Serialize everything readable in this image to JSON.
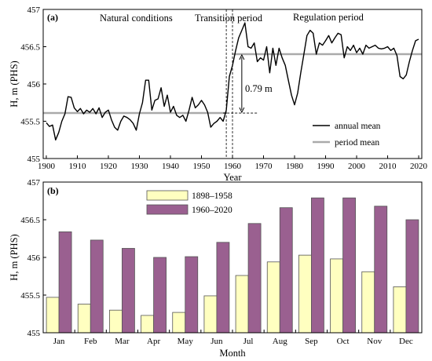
{
  "chart_data": [
    {
      "panel_label": "(a)",
      "type": "line",
      "xlabel": "Year",
      "ylabel": "H, m (PHS)",
      "xlim": [
        1899,
        2021
      ],
      "ylim": [
        455,
        457
      ],
      "x_ticks": [
        1900,
        1910,
        1920,
        1930,
        1940,
        1950,
        1960,
        1970,
        1980,
        1990,
        2000,
        2010,
        2020
      ],
      "y_ticks": [
        455,
        455.5,
        456,
        456.5,
        457
      ],
      "legend": {
        "position": "bottom-right",
        "entries": [
          "annual mean",
          "period mean"
        ]
      },
      "annotations": [
        "Natural conditions",
        "Transition period",
        "Regulation period",
        "0.79 m"
      ],
      "transition_lines_x": [
        1958,
        1960
      ],
      "series": [
        {
          "name": "annual mean",
          "color": "#000000",
          "x": [
            1900,
            1901,
            1902,
            1903,
            1904,
            1905,
            1906,
            1907,
            1908,
            1909,
            1910,
            1911,
            1912,
            1913,
            1914,
            1915,
            1916,
            1917,
            1918,
            1919,
            1920,
            1921,
            1922,
            1923,
            1924,
            1925,
            1926,
            1927,
            1928,
            1929,
            1930,
            1931,
            1932,
            1933,
            1934,
            1935,
            1936,
            1937,
            1938,
            1939,
            1940,
            1941,
            1942,
            1943,
            1944,
            1945,
            1946,
            1947,
            1948,
            1949,
            1950,
            1951,
            1952,
            1953,
            1954,
            1955,
            1956,
            1957,
            1958,
            1959,
            1960,
            1961,
            1962,
            1963,
            1964,
            1965,
            1966,
            1967,
            1968,
            1969,
            1970,
            1971,
            1972,
            1973,
            1974,
            1975,
            1976,
            1977,
            1978,
            1979,
            1980,
            1981,
            1982,
            1983,
            1984,
            1985,
            1986,
            1987,
            1988,
            1989,
            1990,
            1991,
            1992,
            1993,
            1994,
            1995,
            1996,
            1997,
            1998,
            1999,
            2000,
            2001,
            2002,
            2003,
            2004,
            2005,
            2006,
            2007,
            2008,
            2009,
            2010,
            2011,
            2012,
            2013,
            2014,
            2015,
            2016,
            2017,
            2018,
            2019,
            2020
          ],
          "y": [
            455.48,
            455.43,
            455.45,
            455.25,
            455.35,
            455.5,
            455.6,
            455.83,
            455.82,
            455.68,
            455.63,
            455.67,
            455.6,
            455.65,
            455.62,
            455.67,
            455.6,
            455.68,
            455.55,
            455.62,
            455.65,
            455.52,
            455.42,
            455.38,
            455.5,
            455.57,
            455.55,
            455.52,
            455.47,
            455.38,
            455.6,
            455.75,
            456.05,
            456.05,
            455.65,
            455.78,
            455.8,
            455.95,
            455.7,
            455.85,
            455.62,
            455.7,
            455.58,
            455.55,
            455.58,
            455.5,
            455.65,
            455.82,
            455.68,
            455.72,
            455.78,
            455.72,
            455.62,
            455.42,
            455.47,
            455.5,
            455.55,
            455.5,
            455.65,
            456.1,
            456.25,
            456.45,
            456.62,
            456.72,
            456.82,
            456.5,
            456.48,
            456.55,
            456.3,
            456.35,
            456.32,
            456.5,
            456.15,
            456.48,
            456.25,
            456.48,
            456.35,
            456.25,
            456.05,
            455.85,
            455.72,
            455.88,
            456.15,
            456.4,
            456.65,
            456.72,
            456.68,
            456.4,
            456.55,
            456.52,
            456.58,
            456.65,
            456.55,
            456.62,
            456.68,
            456.66,
            456.35,
            456.5,
            456.45,
            456.52,
            456.42,
            456.48,
            456.4,
            456.52,
            456.48,
            456.5,
            456.52,
            456.48,
            456.47,
            456.48,
            456.5,
            456.45,
            456.48,
            456.38,
            456.1,
            456.07,
            456.12,
            456.3,
            456.45,
            456.58,
            456.6
          ]
        },
        {
          "name": "period mean",
          "color": "#aaaaaa",
          "segments": [
            {
              "x": [
                1899,
                1958
              ],
              "y": 455.61
            },
            {
              "x": [
                1960,
                2021
              ],
              "y": 456.4
            }
          ]
        }
      ]
    },
    {
      "panel_label": "(b)",
      "type": "bar",
      "xlabel": "Month",
      "ylabel": "H, m (PHS)",
      "ylim": [
        455,
        457
      ],
      "y_ticks": [
        455,
        455.5,
        456,
        456.5,
        457
      ],
      "legend": {
        "position": "top-left"
      },
      "categories": [
        "Jan",
        "Feb",
        "Mar",
        "Apr",
        "May",
        "Jun",
        "Jul",
        "Aug",
        "Sep",
        "Oct",
        "Nov",
        "Dec"
      ],
      "series": [
        {
          "name": "1898–1958",
          "color": "#ffffc0",
          "values": [
            455.47,
            455.38,
            455.3,
            455.23,
            455.27,
            455.49,
            455.76,
            455.94,
            456.03,
            455.98,
            455.81,
            455.61
          ]
        },
        {
          "name": "1960–2020",
          "color": "#9a6090",
          "values": [
            456.34,
            456.23,
            456.12,
            456.0,
            456.01,
            456.2,
            456.45,
            456.66,
            456.79,
            456.79,
            456.68,
            456.5
          ]
        }
      ]
    }
  ]
}
